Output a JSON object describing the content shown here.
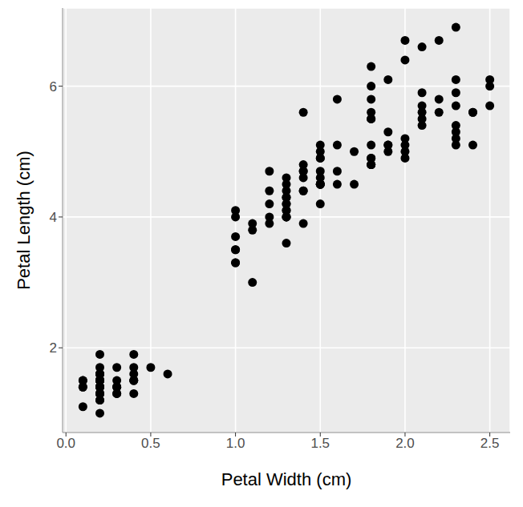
{
  "chart_data": {
    "type": "scatter",
    "x_label": "Petal Width (cm)",
    "y_label": "Petal Length (cm)",
    "color": "#000000",
    "marker": "circle",
    "grid": true,
    "x": [
      0.2,
      0.2,
      0.2,
      0.2,
      0.2,
      0.4,
      0.3,
      0.2,
      0.2,
      0.1,
      0.2,
      0.2,
      0.1,
      0.1,
      0.2,
      0.4,
      0.4,
      0.3,
      0.3,
      0.3,
      0.2,
      0.4,
      0.2,
      0.5,
      0.2,
      0.2,
      0.4,
      0.2,
      0.2,
      0.2,
      0.2,
      0.4,
      0.1,
      0.2,
      0.2,
      0.2,
      0.2,
      0.1,
      0.2,
      0.2,
      0.3,
      0.3,
      0.2,
      0.6,
      0.4,
      0.3,
      0.2,
      0.2,
      0.2,
      0.2,
      1.4,
      1.5,
      1.5,
      1.3,
      1.5,
      1.3,
      1.6,
      1.0,
      1.3,
      1.4,
      1.0,
      1.5,
      1.0,
      1.4,
      1.3,
      1.4,
      1.5,
      1.0,
      1.5,
      1.1,
      1.8,
      1.3,
      1.5,
      1.2,
      1.3,
      1.4,
      1.4,
      1.7,
      1.5,
      1.0,
      1.1,
      1.0,
      1.2,
      1.6,
      1.5,
      1.6,
      1.5,
      1.3,
      1.3,
      1.3,
      1.2,
      1.4,
      1.2,
      1.0,
      1.3,
      1.2,
      1.3,
      1.3,
      1.1,
      1.3,
      2.5,
      1.9,
      2.1,
      1.8,
      2.2,
      2.1,
      1.7,
      1.8,
      1.8,
      2.5,
      2.0,
      1.9,
      2.1,
      2.0,
      2.4,
      2.3,
      1.8,
      2.2,
      2.3,
      1.5,
      2.3,
      2.0,
      2.0,
      1.8,
      2.1,
      1.8,
      1.8,
      1.8,
      2.1,
      1.6,
      1.9,
      2.0,
      2.2,
      1.5,
      1.4,
      2.3,
      2.4,
      1.8,
      1.8,
      2.1,
      2.4,
      2.3,
      1.9,
      2.3,
      2.5,
      2.3,
      1.9,
      2.0,
      2.3,
      1.8
    ],
    "values": [
      1.4,
      1.4,
      1.3,
      1.5,
      1.4,
      1.7,
      1.4,
      1.5,
      1.4,
      1.5,
      1.5,
      1.6,
      1.4,
      1.1,
      1.2,
      1.5,
      1.3,
      1.4,
      1.7,
      1.5,
      1.7,
      1.5,
      1.0,
      1.7,
      1.9,
      1.6,
      1.6,
      1.5,
      1.4,
      1.6,
      1.6,
      1.5,
      1.5,
      1.4,
      1.5,
      1.2,
      1.3,
      1.4,
      1.3,
      1.5,
      1.3,
      1.3,
      1.3,
      1.6,
      1.9,
      1.4,
      1.6,
      1.4,
      1.5,
      1.4,
      4.7,
      4.5,
      4.9,
      4.0,
      4.6,
      4.5,
      4.7,
      3.3,
      4.6,
      3.9,
      3.5,
      4.2,
      4.0,
      4.7,
      3.6,
      4.4,
      4.5,
      4.1,
      4.5,
      3.9,
      4.8,
      4.0,
      4.9,
      4.7,
      4.3,
      4.4,
      4.8,
      5.0,
      4.5,
      3.5,
      3.8,
      3.7,
      3.9,
      5.1,
      4.5,
      4.5,
      4.7,
      4.4,
      4.1,
      4.0,
      4.4,
      4.6,
      4.0,
      3.3,
      4.2,
      4.2,
      4.2,
      4.3,
      3.0,
      4.1,
      6.0,
      5.1,
      5.9,
      5.6,
      5.8,
      6.6,
      4.5,
      6.3,
      5.8,
      6.1,
      5.1,
      5.3,
      5.5,
      5.0,
      5.1,
      5.3,
      5.5,
      6.7,
      6.9,
      5.0,
      5.7,
      4.9,
      6.7,
      4.9,
      5.7,
      6.0,
      4.8,
      4.9,
      5.6,
      5.8,
      6.1,
      6.4,
      5.6,
      5.1,
      5.6,
      6.1,
      5.6,
      5.5,
      4.8,
      5.4,
      5.6,
      5.1,
      5.1,
      5.9,
      5.7,
      5.2,
      5.0,
      5.2,
      5.4,
      5.1
    ],
    "xlim": [
      -0.02,
      2.62
    ],
    "ylim": [
      0.705,
      7.195
    ],
    "xticks": [
      {
        "value": 0,
        "label": "0.0"
      },
      0.5,
      {
        "value": 1,
        "label": "1.0"
      },
      1.5,
      {
        "value": 2,
        "label": "2.0"
      },
      2.5
    ],
    "yticks": [
      2,
      4,
      6
    ]
  }
}
